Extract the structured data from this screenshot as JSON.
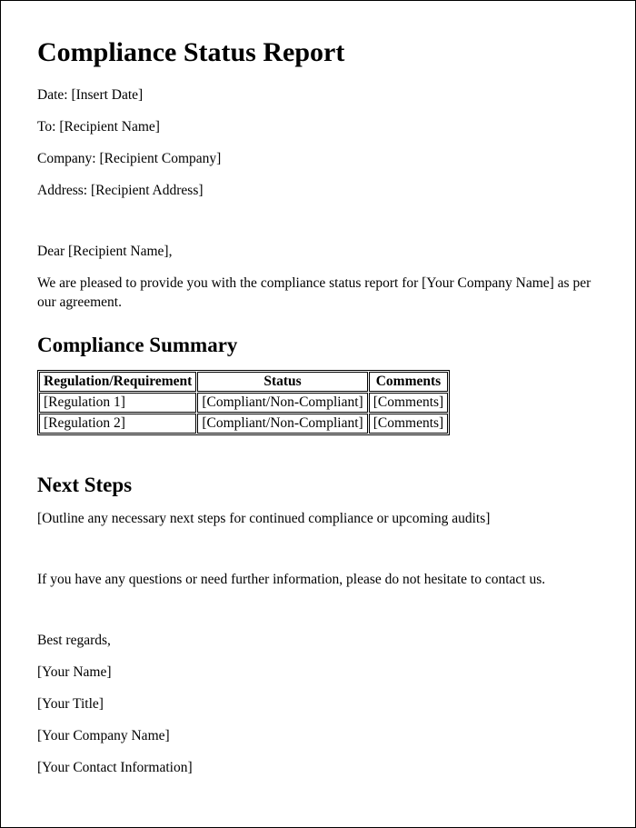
{
  "title": "Compliance Status Report",
  "fields": {
    "date_label": "Date:",
    "date_value": "[Insert Date]",
    "to_label": "To:",
    "to_value": "[Recipient Name]",
    "company_label": "Company:",
    "company_value": "[Recipient Company]",
    "address_label": "Address:",
    "address_value": "[Recipient Address]"
  },
  "salutation": "Dear [Recipient Name],",
  "intro": "We are pleased to provide you with the compliance status report for [Your Company Name] as per our agreement.",
  "summary_heading": "Compliance Summary",
  "table": {
    "headers": {
      "col1": "Regulation/Requirement",
      "col2": "Status",
      "col3": "Comments"
    },
    "rows": [
      {
        "c1": "[Regulation 1]",
        "c2": "[Compliant/Non-Compliant]",
        "c3": "[Comments]"
      },
      {
        "c1": "[Regulation 2]",
        "c2": "[Compliant/Non-Compliant]",
        "c3": "[Comments]"
      }
    ]
  },
  "next_steps_heading": "Next Steps",
  "next_steps_body": "[Outline any necessary next steps for continued compliance or upcoming audits]",
  "closing_help": "If you have any questions or need further information, please do not hesitate to contact us.",
  "signoff": {
    "regards": "Best regards,",
    "name": "[Your Name]",
    "title": "[Your Title]",
    "company": "[Your Company Name]",
    "contact": "[Your Contact Information]"
  }
}
